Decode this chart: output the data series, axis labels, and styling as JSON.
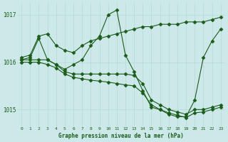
{
  "title": "Graphe pression niveau de la mer (hPa)",
  "background_color": "#cce8e8",
  "grid_color": "#b8d8d8",
  "line_color": "#1a5c1a",
  "hours": [
    0,
    1,
    2,
    3,
    4,
    5,
    6,
    7,
    8,
    9,
    10,
    11,
    12,
    13,
    14,
    15,
    16,
    17,
    18,
    19,
    20,
    21,
    22,
    23
  ],
  "series1": [
    1016.1,
    1016.15,
    1016.55,
    1016.6,
    1016.35,
    1016.25,
    1016.2,
    1016.35,
    1016.45,
    1016.5,
    1016.55,
    1016.6,
    1016.65,
    1016.7,
    1016.75,
    1016.75,
    1016.8,
    1016.8,
    1016.8,
    1016.85,
    1016.85,
    1016.85,
    1016.9,
    1016.95
  ],
  "series2": [
    1016.05,
    1016.1,
    1016.5,
    1016.05,
    1015.95,
    1015.85,
    1015.95,
    1016.05,
    1016.35,
    1016.55,
    1017.0,
    1017.1,
    1016.15,
    1015.8,
    1015.4,
    1015.05,
    1015.0,
    1014.9,
    1014.85,
    1014.85,
    1015.2,
    1016.1,
    1016.45,
    1016.7
  ],
  "series3": [
    1016.05,
    1016.05,
    1016.05,
    1016.05,
    1015.95,
    1015.8,
    1015.75,
    1015.75,
    1015.75,
    1015.75,
    1015.75,
    1015.75,
    1015.75,
    1015.72,
    1015.55,
    1015.2,
    1015.1,
    1015.0,
    1014.95,
    1014.9,
    1015.0,
    1015.0,
    1015.05,
    1015.1
  ],
  "series4": [
    1016.0,
    1016.0,
    1016.0,
    1015.95,
    1015.88,
    1015.75,
    1015.68,
    1015.65,
    1015.62,
    1015.6,
    1015.58,
    1015.55,
    1015.52,
    1015.5,
    1015.35,
    1015.1,
    1015.0,
    1014.93,
    1014.88,
    1014.83,
    1014.93,
    1014.95,
    1015.0,
    1015.05
  ],
  "ylim": [
    1014.65,
    1017.25
  ],
  "yticks": [
    1015,
    1016,
    1017
  ],
  "xlim": [
    -0.5,
    23.5
  ],
  "xticks": [
    0,
    1,
    2,
    3,
    4,
    5,
    6,
    7,
    8,
    9,
    10,
    11,
    12,
    13,
    14,
    15,
    16,
    17,
    18,
    19,
    20,
    21,
    22,
    23
  ]
}
